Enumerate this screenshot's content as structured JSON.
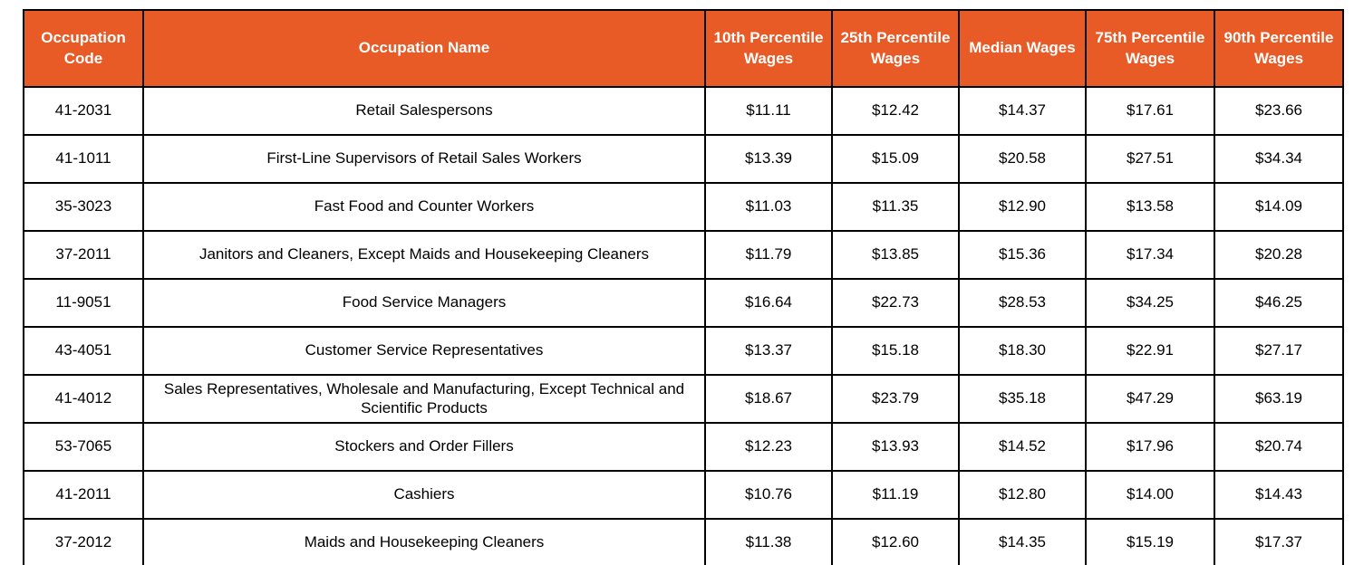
{
  "colors": {
    "header_bg": "#e85a26",
    "header_text": "#ffffff",
    "border": "#000000",
    "cell_text": "#000000",
    "page_bg": "#ffffff"
  },
  "chart_data": {
    "type": "table",
    "columns": [
      "Occupation Code",
      "Occupation Name",
      "10th Percentile Wages",
      "25th Percentile Wages",
      "Median Wages",
      "75th Percentile Wages",
      "90th Percentile Wages"
    ],
    "rows": [
      [
        "41-2031",
        "Retail Salespersons",
        "$11.11",
        "$12.42",
        "$14.37",
        "$17.61",
        "$23.66"
      ],
      [
        "41-1011",
        "First-Line Supervisors of Retail Sales Workers",
        "$13.39",
        "$15.09",
        "$20.58",
        "$27.51",
        "$34.34"
      ],
      [
        "35-3023",
        "Fast Food and Counter Workers",
        "$11.03",
        "$11.35",
        "$12.90",
        "$13.58",
        "$14.09"
      ],
      [
        "37-2011",
        "Janitors and Cleaners, Except Maids and Housekeeping Cleaners",
        "$11.79",
        "$13.85",
        "$15.36",
        "$17.34",
        "$20.28"
      ],
      [
        "11-9051",
        "Food Service Managers",
        "$16.64",
        "$22.73",
        "$28.53",
        "$34.25",
        "$46.25"
      ],
      [
        "43-4051",
        "Customer Service Representatives",
        "$13.37",
        "$15.18",
        "$18.30",
        "$22.91",
        "$27.17"
      ],
      [
        "41-4012",
        "Sales Representatives, Wholesale and Manufacturing, Except Technical and Scientific Products",
        "$18.67",
        "$23.79",
        "$35.18",
        "$47.29",
        "$63.19"
      ],
      [
        "53-7065",
        "Stockers and Order Fillers",
        "$12.23",
        "$13.93",
        "$14.52",
        "$17.96",
        "$20.74"
      ],
      [
        "41-2011",
        "Cashiers",
        "$10.76",
        "$11.19",
        "$12.80",
        "$14.00",
        "$14.43"
      ],
      [
        "37-2012",
        "Maids and Housekeeping Cleaners",
        "$11.38",
        "$12.60",
        "$14.35",
        "$15.19",
        "$17.37"
      ]
    ]
  }
}
